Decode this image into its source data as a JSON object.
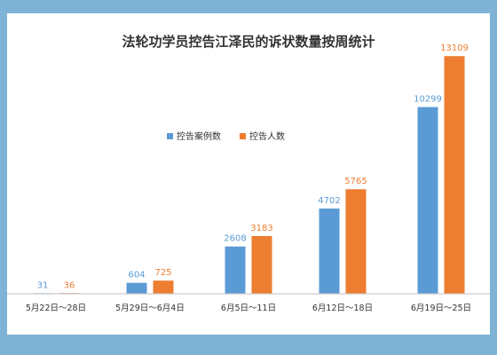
{
  "chart_data": {
    "type": "bar",
    "title": "法轮功学员控告江泽民的诉状数量按周统计",
    "categories": [
      "5月22日～28日",
      "5月29日～6月4日",
      "6月5日～11日",
      "6月12日～18日",
      "6月19日～25日"
    ],
    "series": [
      {
        "name": "控告案例数",
        "values": [
          31,
          604,
          2608,
          4702,
          10299
        ],
        "color": "#5b9bd5"
      },
      {
        "name": "控告人数",
        "values": [
          36,
          725,
          3183,
          5765,
          13109
        ],
        "color": "#ed7d31"
      }
    ],
    "xlabel": "",
    "ylabel": "",
    "ylim": [
      0,
      14000
    ],
    "grid": false,
    "legend_position": "top-center",
    "data_labels": true
  },
  "colors": {
    "frame": "#7fb3d5",
    "background": "#ffffff",
    "axis": "#bfbfbf",
    "text": "#333333"
  }
}
